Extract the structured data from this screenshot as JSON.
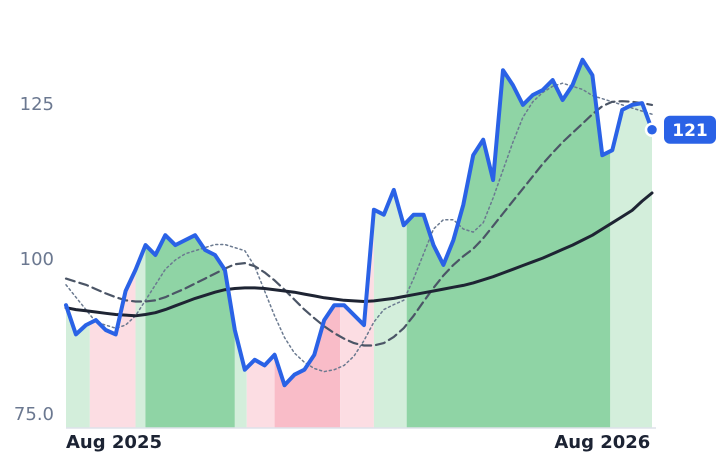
{
  "chart_data": {
    "type": "line",
    "x": [
      0,
      1,
      2,
      3,
      4,
      5,
      6,
      7,
      8,
      9,
      10,
      11,
      12,
      13,
      14,
      15,
      16,
      17,
      18,
      19,
      20,
      21,
      22,
      23,
      24,
      25,
      26,
      27,
      28,
      29,
      30,
      31,
      32,
      33,
      34,
      35,
      36,
      37,
      38,
      39,
      40,
      41,
      42,
      43,
      44,
      45,
      46,
      47,
      48,
      49,
      50,
      51,
      52,
      53,
      54,
      55,
      56,
      57,
      58,
      59
    ],
    "xlim": [
      0,
      59
    ],
    "xticks": [
      {
        "value": 0,
        "label": "Aug 2025"
      },
      {
        "value": 54,
        "label": "Aug 2026"
      }
    ],
    "ylim": [
      72.9,
      138.7
    ],
    "yticks": [
      {
        "value": 75,
        "label": "75.0"
      },
      100,
      125
    ],
    "grid": false,
    "regions": [
      {
        "start": 0,
        "end": 2.4,
        "color": "#d3eedb"
      },
      {
        "start": 2.4,
        "end": 7,
        "color": "#fcdde3"
      },
      {
        "start": 7,
        "end": 8,
        "color": "#d3eedb"
      },
      {
        "start": 8,
        "end": 17,
        "color": "#8fd4a5"
      },
      {
        "start": 17,
        "end": 18.2,
        "color": "#d3eedb"
      },
      {
        "start": 18.2,
        "end": 21,
        "color": "#fcdde3"
      },
      {
        "start": 21,
        "end": 27.6,
        "color": "#f9bcc8"
      },
      {
        "start": 27.6,
        "end": 31,
        "color": "#fcdde3"
      },
      {
        "start": 31,
        "end": 34.3,
        "color": "#d3eedb"
      },
      {
        "start": 34.3,
        "end": 54.8,
        "color": "#8fd4a5"
      },
      {
        "start": 54.8,
        "end": 59,
        "color": "#d3eedb"
      }
    ],
    "series": [
      {
        "color": "#6b7a90",
        "style": "dotted",
        "width": 1.5,
        "values": [
          96,
          94,
          92,
          90,
          89.5,
          89,
          89.5,
          91,
          93.5,
          96,
          98.5,
          100,
          101,
          101.5,
          102,
          102.5,
          102.5,
          102,
          101.5,
          99,
          95,
          91,
          87.5,
          85,
          83.5,
          82.5,
          82,
          82.3,
          83,
          84.5,
          87,
          90,
          92,
          92.8,
          93.5,
          97,
          101,
          105,
          106.5,
          106.5,
          105,
          104.5,
          106,
          110,
          114.5,
          119,
          123,
          125.5,
          127,
          128,
          128.5,
          128,
          127.5,
          126.5,
          126,
          125.5,
          125,
          124.5,
          124,
          123.5
        ]
      },
      {
        "color": "#4b5566",
        "style": "dashed",
        "width": 2.2,
        "values": [
          97,
          96.5,
          96,
          95.3,
          94.6,
          94,
          93.5,
          93.3,
          93.3,
          93.5,
          94,
          94.7,
          95.4,
          96.2,
          97,
          97.8,
          98.6,
          99.3,
          99.5,
          99,
          98,
          96.7,
          95.2,
          93.6,
          92,
          90.6,
          89.3,
          88.2,
          87.3,
          86.6,
          86.2,
          86.2,
          86.6,
          87.6,
          89,
          91,
          93.3,
          95.5,
          97.5,
          99.2,
          100.6,
          101.8,
          103.5,
          105.5,
          107.5,
          109.5,
          111.5,
          113.5,
          115.5,
          117.3,
          119,
          120.5,
          122,
          123.5,
          124.8,
          125.5,
          125.6,
          125.5,
          125.3,
          125
        ]
      },
      {
        "color": "#1e2433",
        "style": "solid",
        "width": 3,
        "values": [
          92.3,
          92,
          91.8,
          91.6,
          91.4,
          91.2,
          91.1,
          91,
          91.2,
          91.5,
          92,
          92.6,
          93.2,
          93.8,
          94.3,
          94.8,
          95.2,
          95.4,
          95.5,
          95.5,
          95.4,
          95.2,
          95,
          94.8,
          94.5,
          94.2,
          93.9,
          93.7,
          93.5,
          93.4,
          93.3,
          93.4,
          93.6,
          93.8,
          94.1,
          94.4,
          94.7,
          95,
          95.3,
          95.6,
          95.9,
          96.3,
          96.8,
          97.3,
          97.9,
          98.5,
          99.1,
          99.7,
          100.3,
          101,
          101.7,
          102.4,
          103.2,
          104,
          105,
          106,
          107,
          108,
          109.5,
          110.8
        ]
      },
      {
        "color": "#2a62e6",
        "style": "solid",
        "width": 4,
        "fill_below": true,
        "last_badge": true,
        "values": [
          92.7,
          88,
          89.5,
          90.3,
          88.7,
          88,
          95,
          98.4,
          102.4,
          100.8,
          104,
          102.4,
          103.2,
          104,
          101.6,
          100.8,
          98.4,
          88.7,
          82.3,
          83.9,
          83,
          84.7,
          79.8,
          81.5,
          82.3,
          84.7,
          90.3,
          92.7,
          92.7,
          91.1,
          89.5,
          108.1,
          107.3,
          111.3,
          105.6,
          107.3,
          107.3,
          102.4,
          99.2,
          103.2,
          108.9,
          116.9,
          119.4,
          112.9,
          130.6,
          128.2,
          125,
          126.6,
          127.4,
          129,
          125.8,
          128.2,
          132.3,
          129.8,
          116.9,
          117.7,
          124.2,
          125,
          125.3,
          121
        ]
      }
    ]
  }
}
